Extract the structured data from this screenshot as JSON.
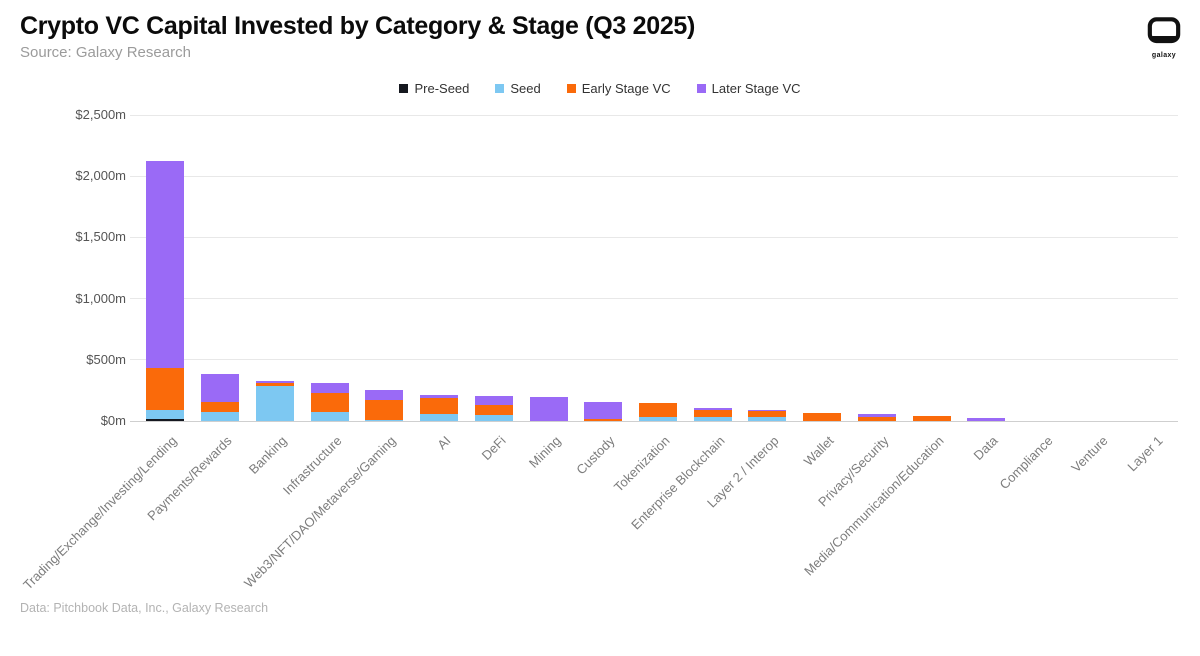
{
  "header": {
    "title": "Crypto VC Capital Invested by Category & Stage (Q3 2025)",
    "source": "Source: Galaxy Research",
    "logo_text": "galaxy"
  },
  "footer": {
    "credit": "Data: Pitchbook Data, Inc., Galaxy Research"
  },
  "colors": {
    "pre_seed": "#15181f",
    "seed": "#7dc8f2",
    "early_stage": "#fa6a0a",
    "later_stage": "#9a6af6",
    "gridline": "#e8e8e8",
    "axis_text": "#555555"
  },
  "chart_data": {
    "type": "bar",
    "stacked": true,
    "title": "Crypto VC Capital Invested by Category & Stage (Q3 2025)",
    "xlabel": "",
    "ylabel": "",
    "ylim": [
      0,
      2500
    ],
    "grid": true,
    "legend_position": "top",
    "units": "$m",
    "ylabel_ticks": [
      "$0m",
      "$500m",
      "$1,000m",
      "$1,500m",
      "$2,000m",
      "$2,500m"
    ],
    "categories": [
      "Trading/Exchange/Investing/Lending",
      "Payments/Rewards",
      "Banking",
      "Infrastructure",
      "Web3/NFT/DAO/Metaverse/Gaming",
      "AI",
      "DeFi",
      "Mining",
      "Custody",
      "Tokenization",
      "Enterprise Blockchain",
      "Layer 2 / Interop",
      "Wallet",
      "Privacy/Security",
      "Media/Communication/Education",
      "Data",
      "Compliance",
      "Venture",
      "Layer 1"
    ],
    "series": [
      {
        "name": "Pre-Seed",
        "color": "#15181f",
        "values": [
          15,
          0,
          0,
          0,
          0,
          0,
          0,
          0,
          0,
          0,
          0,
          0,
          0,
          0,
          0,
          0,
          0,
          0,
          0
        ]
      },
      {
        "name": "Seed",
        "color": "#7dc8f2",
        "values": [
          75,
          75,
          290,
          75,
          10,
          55,
          50,
          0,
          0,
          35,
          30,
          30,
          0,
          0,
          0,
          0,
          0,
          0,
          0
        ]
      },
      {
        "name": "Early Stage VC",
        "color": "#fa6a0a",
        "values": [
          340,
          80,
          20,
          150,
          165,
          130,
          80,
          0,
          15,
          110,
          60,
          50,
          65,
          35,
          40,
          0,
          0,
          0,
          0
        ]
      },
      {
        "name": "Later Stage VC",
        "color": "#9a6af6",
        "values": [
          1695,
          230,
          20,
          85,
          75,
          30,
          75,
          195,
          140,
          0,
          15,
          10,
          0,
          25,
          0,
          25,
          0,
          0,
          0
        ]
      }
    ]
  }
}
